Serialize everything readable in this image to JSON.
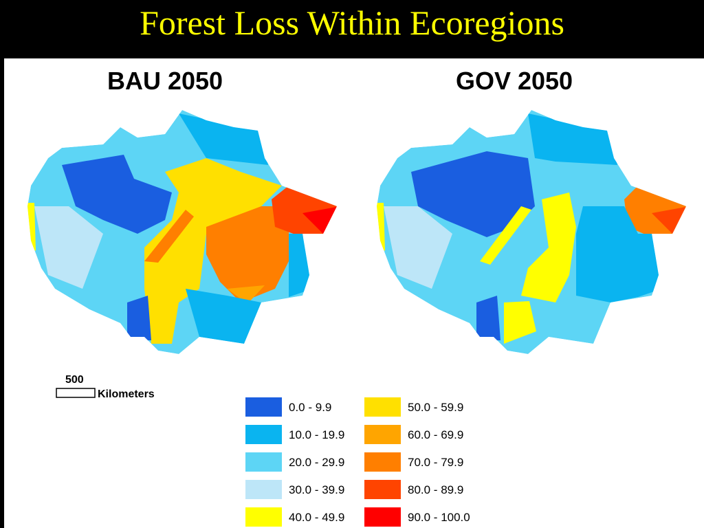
{
  "title": "Forest Loss Within Ecoregions",
  "maps": [
    {
      "title": "BAU 2050"
    },
    {
      "title": "GOV 2050"
    }
  ],
  "scale_bar": {
    "distance": 500,
    "unit": "Kilometers"
  },
  "legend": {
    "items": [
      {
        "label": "0.0 - 9.9",
        "color": "#1a5ee0"
      },
      {
        "label": "10.0 - 19.9",
        "color": "#0ab4f0"
      },
      {
        "label": "20.0 - 29.9",
        "color": "#5dd5f5"
      },
      {
        "label": "30.0 - 39.9",
        "color": "#bde6f8"
      },
      {
        "label": "40.0 - 49.9",
        "color": "#ffff00"
      },
      {
        "label": "50.0 - 59.9",
        "color": "#ffe000"
      },
      {
        "label": "60.0 - 69.9",
        "color": "#ffa500"
      },
      {
        "label": "70.0 - 79.9",
        "color": "#ff7f00"
      },
      {
        "label": "80.0 - 89.9",
        "color": "#ff4400"
      },
      {
        "label": "90.0 - 100.0",
        "color": "#ff0000"
      }
    ]
  }
}
